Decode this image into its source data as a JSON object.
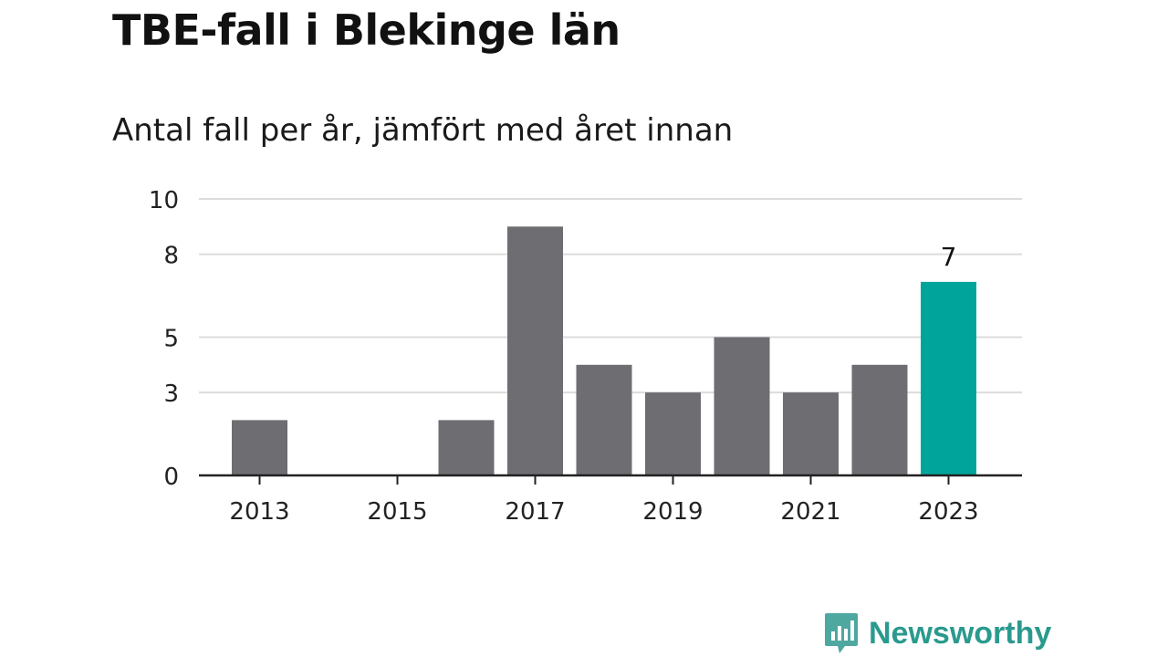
{
  "title": "TBE-fall i Blekinge län",
  "subtitle": "Antal fall per år, jämfört med året innan",
  "brand": "Newsworthy",
  "colors": {
    "bar": "#6e6d72",
    "highlight": "#00a49a",
    "grid": "#dcdcdc",
    "axis": "#222222",
    "brand": "#2a9a8e"
  },
  "chart_data": {
    "type": "bar",
    "categories": [
      "2013",
      "2014",
      "2015",
      "2016",
      "2017",
      "2018",
      "2019",
      "2020",
      "2021",
      "2022",
      "2023"
    ],
    "values": [
      2,
      0,
      0,
      2,
      9,
      4,
      3,
      5,
      3,
      4,
      7
    ],
    "highlight_index": 10,
    "highlight_label": "7",
    "ylim": [
      0,
      10
    ],
    "yticks": [
      0,
      3,
      5,
      8,
      10
    ],
    "ytick_labels": [
      "0",
      "3",
      "5",
      "8",
      "10"
    ],
    "xticks": [
      "2013",
      "2015",
      "2017",
      "2019",
      "2021",
      "2023"
    ],
    "grid": true
  }
}
